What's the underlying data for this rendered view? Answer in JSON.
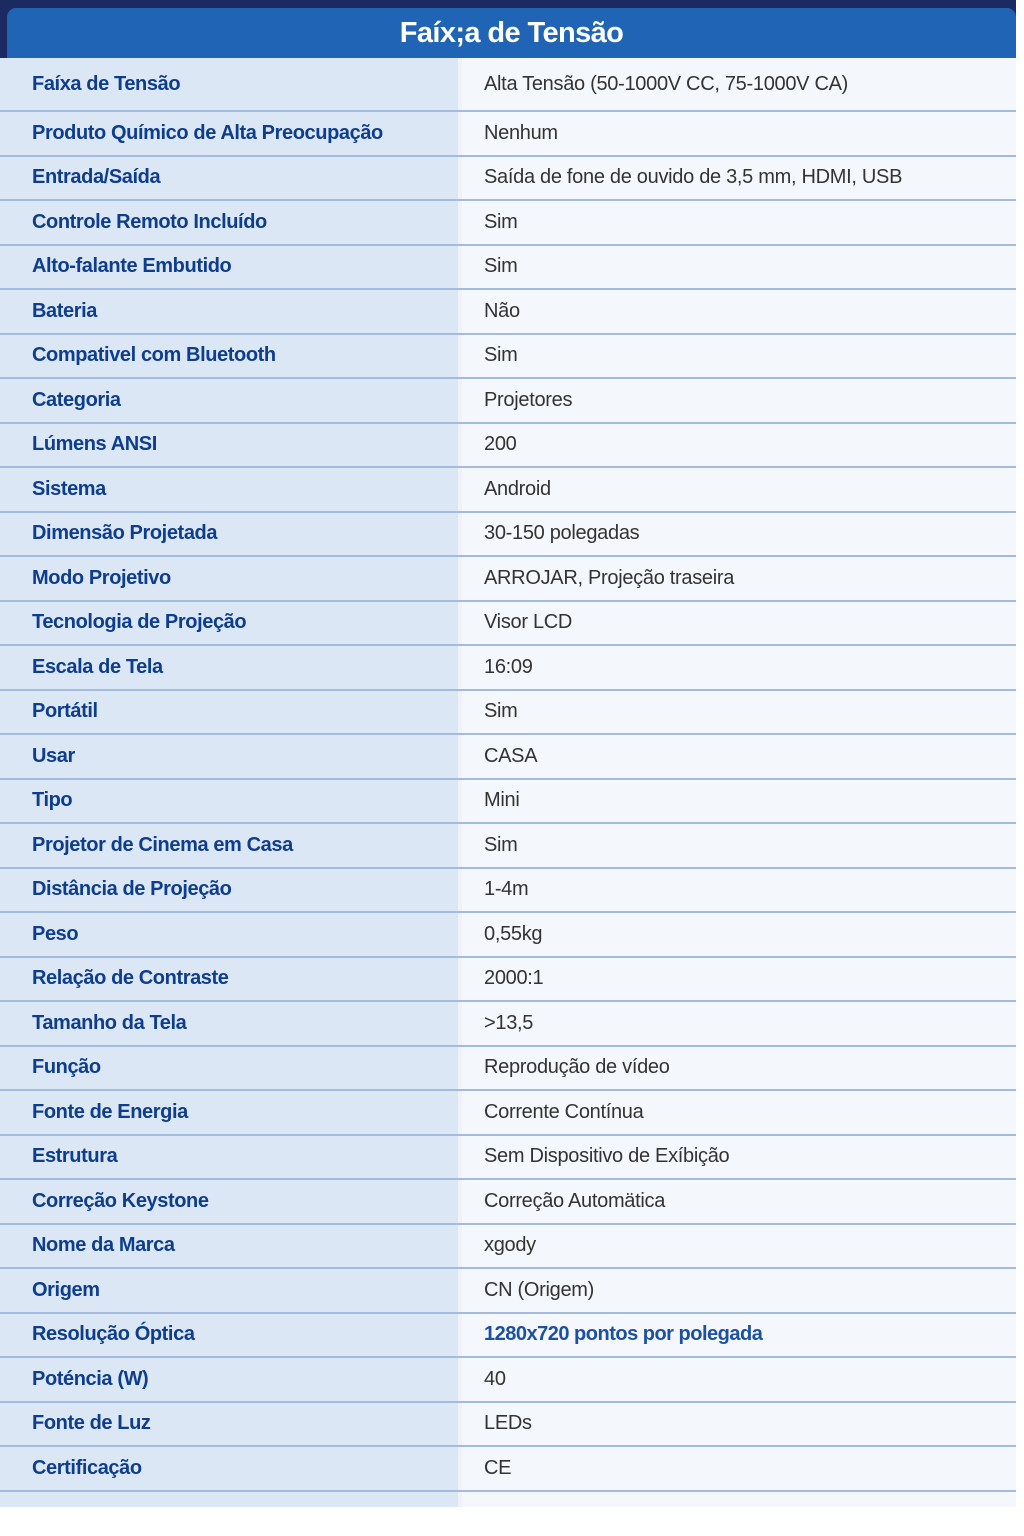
{
  "header": {
    "title": "Faíx;a de Tensão"
  },
  "colors": {
    "header_bg": "#1f64b5",
    "header_shadow": "#1c2a62",
    "label_text": "#0d3d8c",
    "value_text": "#333333",
    "link_value_text": "#1b50a3",
    "label_bg": "#dce7f5",
    "value_bg": "#f4f7fb",
    "row_divider": "#a2bbdf"
  },
  "table": {
    "rows": [
      {
        "label": "Faíxa de Tensão",
        "value": "Alta Tensão (50-1000V CC, 75-1000V CA)",
        "blue": false
      },
      {
        "label": "Produto Químico de Alta Preocupação",
        "value": "Nenhum",
        "blue": false
      },
      {
        "label": "Entrada/Saída",
        "value": "Saída de fone de ouvido de 3,5 mm, HDMI, USB",
        "blue": false
      },
      {
        "label": "Controle Remoto Incluído",
        "value": "Sim",
        "blue": false
      },
      {
        "label": "Alto-falante Embutido",
        "value": "Sim",
        "blue": false
      },
      {
        "label": "Bateria",
        "value": "Não",
        "blue": false
      },
      {
        "label": "Compativel com Bluetooth",
        "value": "Sim",
        "blue": false
      },
      {
        "label": "Categoria",
        "value": "Projetores",
        "blue": false
      },
      {
        "label": "Lúmens ANSI",
        "value": "200",
        "blue": false
      },
      {
        "label": "Sistema",
        "value": "Android",
        "blue": false
      },
      {
        "label": "Dimensão Projetada",
        "value": "30-150 polegadas",
        "blue": false
      },
      {
        "label": "Modo Projetivo",
        "value": "ARROJAR, Projeção traseira",
        "blue": false
      },
      {
        "label": "Tecnologia de Projeção",
        "value": "Visor LCD",
        "blue": false
      },
      {
        "label": "Escala de Tela",
        "value": "16:09",
        "blue": false
      },
      {
        "label": "Portátil",
        "value": "Sim",
        "blue": false
      },
      {
        "label": "Usar",
        "value": "CASA",
        "blue": false
      },
      {
        "label": "Tipo",
        "value": "Mini",
        "blue": false
      },
      {
        "label": "Projetor de Cinema em Casa",
        "value": "Sim",
        "blue": false
      },
      {
        "label": "Distância de Projeção",
        "value": "1-4m",
        "blue": false
      },
      {
        "label": "Peso",
        "value": "0,55kg",
        "blue": false
      },
      {
        "label": "Relação de Contraste",
        "value": "2000:1",
        "blue": false
      },
      {
        "label": "Tamanho da Tela",
        "value": ">13,5",
        "blue": false
      },
      {
        "label": "Função",
        "value": "Reprodução de vídeo",
        "blue": false
      },
      {
        "label": "Fonte de Energia",
        "value": "Corrente Contínua",
        "blue": false
      },
      {
        "label": "Estrutura",
        "value": "Sem Dispositivo de Exíbição",
        "blue": false
      },
      {
        "label": "Correção Keystone",
        "value": "Correção Automätica",
        "blue": false
      },
      {
        "label": "Nome da Marca",
        "value": "xgody",
        "blue": false
      },
      {
        "label": "Origem",
        "value": "CN (Origem)",
        "blue": false
      },
      {
        "label": "Resolução Óptica",
        "value": "1280x720 pontos por polegada",
        "blue": true
      },
      {
        "label": "Poténcia (W)",
        "value": "40",
        "blue": false
      },
      {
        "label": "Fonte de Luz",
        "value": "LEDs",
        "blue": false
      },
      {
        "label": "Certificação",
        "value": "CE",
        "blue": false
      }
    ]
  }
}
